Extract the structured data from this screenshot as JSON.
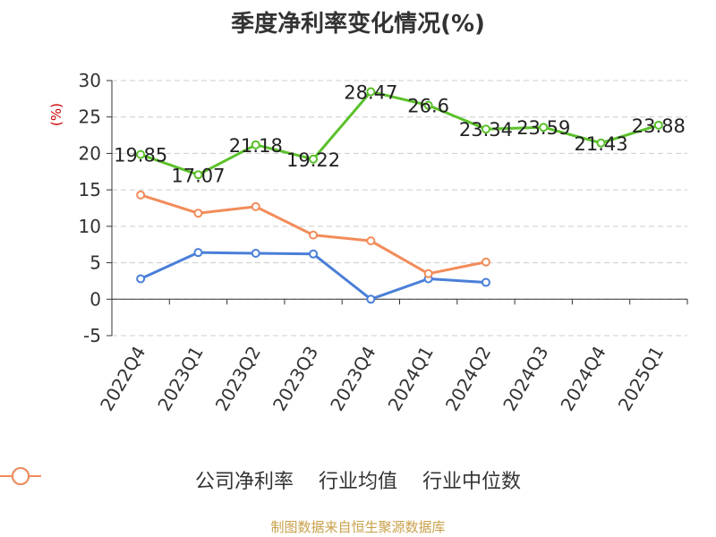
{
  "chart_data": {
    "type": "line",
    "title": "季度净利率变化情况(%)",
    "ylabel": "(%)",
    "ylim": [
      -5,
      30
    ],
    "yticks": [
      -5,
      0,
      5,
      10,
      15,
      20,
      25,
      30
    ],
    "categories": [
      "2022Q4",
      "2023Q1",
      "2023Q2",
      "2023Q3",
      "2023Q4",
      "2024Q1",
      "2024Q2",
      "2024Q3",
      "2024Q4",
      "2025Q1"
    ],
    "grid": true,
    "legend_position": "bottom",
    "series": [
      {
        "name": "公司净利率",
        "color": "#5bc12b",
        "values": [
          19.85,
          17.07,
          21.18,
          19.22,
          28.47,
          26.6,
          23.34,
          23.59,
          21.43,
          23.88
        ],
        "labels": [
          "19.85",
          "17.07",
          "21.18",
          "19.22",
          "28.47",
          "26.6",
          "23.34",
          "23.59",
          "21.43",
          "23.88"
        ]
      },
      {
        "name": "行业均值",
        "color": "#4a7fd8",
        "values": [
          2.8,
          6.4,
          6.3,
          6.2,
          0.0,
          2.8,
          2.3,
          null,
          null,
          null
        ]
      },
      {
        "name": "行业中位数",
        "color": "#f28c5a",
        "values": [
          14.3,
          11.8,
          12.7,
          8.8,
          8.0,
          3.5,
          5.1,
          null,
          null,
          null
        ]
      }
    ]
  },
  "source": "制图数据来自恒生聚源数据库"
}
